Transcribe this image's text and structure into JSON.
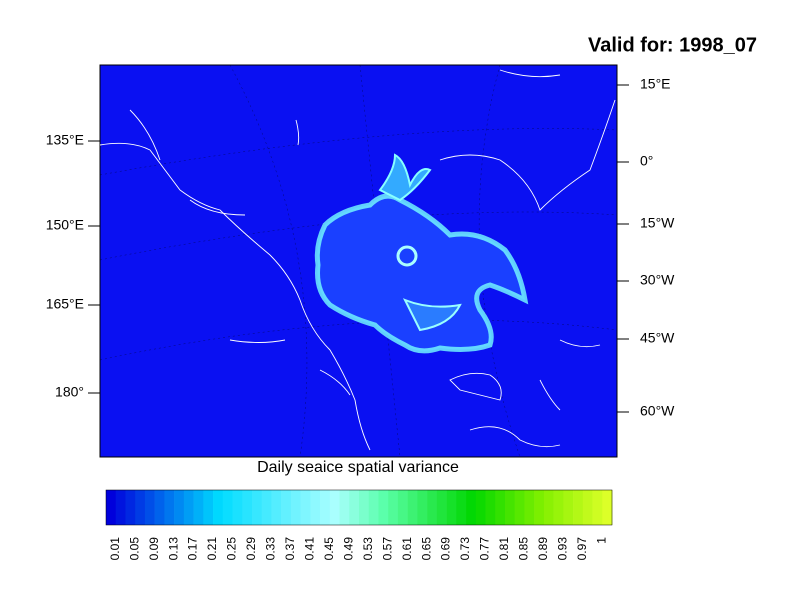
{
  "title": "Valid for: 1998_07",
  "left_labels": [
    "135°E",
    "150°E",
    "165°E",
    "180°"
  ],
  "right_labels": [
    "15°E",
    "0°",
    "15°W",
    "30°W",
    "45°W",
    "60°W"
  ],
  "caption": "Daily seaice spatial variance",
  "colorbar": {
    "labels": [
      0.01,
      0.05,
      0.09,
      0.13,
      0.17,
      0.21,
      0.25,
      0.29,
      0.33,
      0.37,
      0.41,
      0.45,
      0.49,
      0.53,
      0.57,
      0.61,
      0.65,
      0.69,
      0.73,
      0.77,
      0.81,
      0.85,
      0.89,
      0.93,
      0.97,
      1
    ]
  }
}
